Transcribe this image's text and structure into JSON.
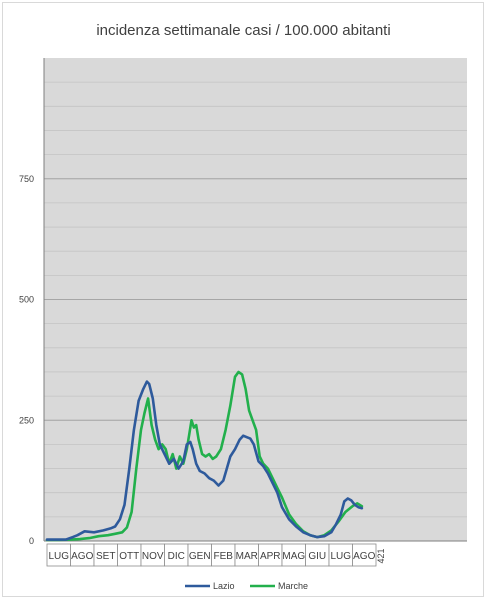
{
  "chart_data": {
    "type": "line",
    "title": "incidenza settimanale casi / 100.000 abitanti",
    "ylim": [
      0,
      1000
    ],
    "yticks": [
      0,
      250,
      500,
      750
    ],
    "grid": true,
    "legend_position": "bottom",
    "categories": [
      "LUG",
      "AGO",
      "SET",
      "OTT",
      "NOV",
      "DIC",
      "GEN",
      "FEB",
      "MAR",
      "APR",
      "MAG",
      "GIU",
      "LUG",
      "AGO"
    ],
    "last_value_label": "421",
    "series": [
      {
        "name": "Lazio",
        "color": "#2e5a9c",
        "x": [
          0.0,
          0.4,
          0.8,
          1.1,
          1.3,
          1.6,
          2.0,
          2.4,
          2.7,
          2.9,
          3.1,
          3.3,
          3.5,
          3.7,
          3.9,
          4.1,
          4.25,
          4.35,
          4.5,
          4.65,
          4.8,
          5.0,
          5.2,
          5.4,
          5.6,
          5.8,
          5.95,
          6.1,
          6.2,
          6.35,
          6.5,
          6.7,
          6.9,
          7.1,
          7.3,
          7.5,
          7.65,
          7.8,
          8.0,
          8.2,
          8.35,
          8.5,
          8.65,
          8.8,
          9.0,
          9.2,
          9.4,
          9.6,
          9.8,
          10.0,
          10.3,
          10.6,
          10.9,
          11.2,
          11.5,
          11.8,
          12.1,
          12.3,
          12.5,
          12.65,
          12.8,
          12.95,
          13.1,
          13.25,
          13.4
        ],
        "y": [
          3,
          3,
          3,
          8,
          12,
          20,
          18,
          22,
          26,
          30,
          45,
          75,
          150,
          230,
          290,
          315,
          330,
          325,
          295,
          240,
          200,
          180,
          160,
          170,
          150,
          165,
          200,
          205,
          190,
          160,
          145,
          140,
          130,
          125,
          115,
          125,
          150,
          175,
          190,
          210,
          218,
          215,
          212,
          200,
          165,
          155,
          140,
          120,
          100,
          70,
          45,
          30,
          18,
          12,
          8,
          10,
          18,
          35,
          55,
          82,
          88,
          84,
          75,
          70,
          68
        ]
      },
      {
        "name": "Marche",
        "color": "#22b04c",
        "x": [
          0.0,
          0.5,
          1.0,
          1.4,
          1.8,
          2.2,
          2.6,
          2.9,
          3.2,
          3.4,
          3.6,
          3.8,
          4.0,
          4.15,
          4.3,
          4.45,
          4.6,
          4.75,
          4.9,
          5.05,
          5.2,
          5.35,
          5.5,
          5.65,
          5.8,
          5.95,
          6.05,
          6.15,
          6.25,
          6.35,
          6.45,
          6.6,
          6.75,
          6.9,
          7.05,
          7.2,
          7.4,
          7.6,
          7.8,
          8.0,
          8.15,
          8.3,
          8.45,
          8.6,
          8.75,
          8.9,
          9.05,
          9.2,
          9.4,
          9.6,
          9.8,
          10.0,
          10.3,
          10.6,
          10.9,
          11.2,
          11.5,
          11.8,
          12.1,
          12.4,
          12.7,
          13.0,
          13.2,
          13.4
        ],
        "y": [
          2,
          2,
          3,
          4,
          6,
          10,
          12,
          15,
          18,
          28,
          60,
          150,
          230,
          265,
          295,
          240,
          210,
          190,
          200,
          190,
          160,
          180,
          150,
          175,
          160,
          190,
          220,
          250,
          235,
          240,
          210,
          180,
          175,
          180,
          170,
          175,
          190,
          230,
          280,
          340,
          350,
          345,
          315,
          270,
          250,
          230,
          175,
          160,
          150,
          130,
          110,
          90,
          55,
          35,
          20,
          12,
          8,
          12,
          22,
          40,
          60,
          72,
          78,
          72
        ]
      }
    ]
  }
}
